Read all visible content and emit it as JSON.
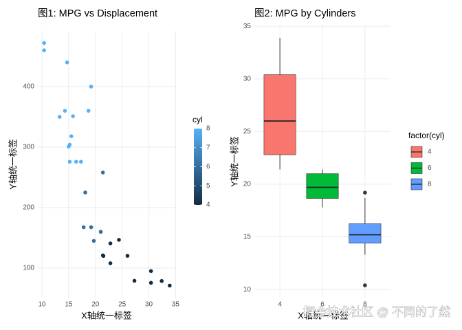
{
  "chart_data": [
    {
      "type": "scatter",
      "title": "图1: MPG vs Displacement",
      "x_label": "X轴统一标签",
      "y_label": "Y轴统一标签",
      "x": [
        21.0,
        21.0,
        22.8,
        21.4,
        18.7,
        18.1,
        14.3,
        24.4,
        22.8,
        19.2,
        17.8,
        16.4,
        17.3,
        15.2,
        10.4,
        10.4,
        14.7,
        32.4,
        30.4,
        33.9,
        21.5,
        15.5,
        15.2,
        13.3,
        19.2,
        27.3,
        26.0,
        30.4,
        15.8,
        19.7,
        15.0,
        21.4
      ],
      "y": [
        160,
        160,
        108,
        258,
        360,
        225,
        360,
        146.7,
        140.8,
        167.6,
        167.6,
        275.8,
        275.8,
        275.8,
        472,
        460,
        440,
        78.7,
        75.7,
        71.1,
        120.1,
        318,
        304,
        350,
        400,
        79,
        120.3,
        95.1,
        351,
        145,
        301,
        121
      ],
      "color_values": [
        6,
        6,
        4,
        6,
        8,
        6,
        8,
        4,
        4,
        6,
        6,
        8,
        8,
        8,
        8,
        8,
        8,
        4,
        4,
        4,
        4,
        8,
        8,
        8,
        8,
        4,
        4,
        4,
        8,
        6,
        8,
        4
      ],
      "xlim": [
        9.225,
        35.075
      ],
      "xticks": [
        10,
        15,
        20,
        25,
        30,
        35
      ],
      "ylim": [
        51.1,
        492
      ],
      "yticks": [
        100,
        200,
        300,
        400
      ],
      "grid": true,
      "color_scale": {
        "title": "cyl",
        "lim": [
          4,
          8
        ],
        "ticks": [
          4,
          5,
          6,
          7,
          8
        ],
        "low": "#132B43",
        "high": "#56B1F7"
      }
    },
    {
      "type": "box",
      "title": "图2: MPG by Cylinders",
      "x_label": "X轴统一标签",
      "y_label": "Y轴统一标签",
      "categories": [
        "4",
        "6",
        "8"
      ],
      "colors": [
        "#F8766D",
        "#00BA38",
        "#619CFF"
      ],
      "legend_title": "factor(cyl)",
      "boxes": [
        {
          "min": 21.4,
          "q1": 22.8,
          "median": 26.0,
          "q3": 30.4,
          "max": 33.9,
          "outliers": []
        },
        {
          "min": 17.8,
          "q1": 18.65,
          "median": 19.7,
          "q3": 21.0,
          "max": 21.4,
          "outliers": []
        },
        {
          "min": 13.3,
          "q1": 14.4,
          "median": 15.2,
          "q3": 16.25,
          "max": 18.7,
          "outliers": [
            10.4,
            19.2
          ]
        }
      ],
      "ylim": [
        9.225,
        35.075
      ],
      "yticks": [
        10,
        15,
        20,
        25,
        30,
        35
      ],
      "grid": true
    }
  ],
  "watermark": "掘金技术社区 @ 不同的了然"
}
